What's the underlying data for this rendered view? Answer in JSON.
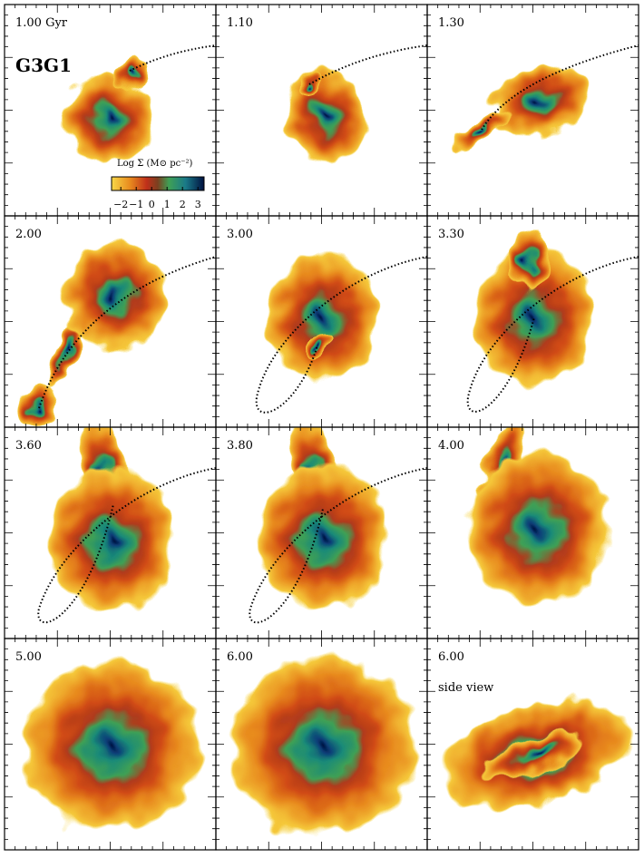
{
  "panels": [
    {
      "label": "1.00 Gyr",
      "model": "G3G1"
    },
    {
      "label": "1.10"
    },
    {
      "label": "1.30"
    },
    {
      "label": "2.00"
    },
    {
      "label": "3.00"
    },
    {
      "label": "3.30"
    },
    {
      "label": "3.60"
    },
    {
      "label": "3.80"
    },
    {
      "label": "4.00"
    },
    {
      "label": "5.00"
    },
    {
      "label": "6.00"
    },
    {
      "label": "6.00",
      "note": "side view"
    }
  ],
  "colorbar": {
    "label": "Log Σ (M⊙ pc⁻²)",
    "lim": [
      -2.6,
      3.4
    ],
    "ticks": [
      {
        "value": -2,
        "label": "−2"
      },
      {
        "value": -1,
        "label": "−1"
      },
      0,
      1,
      2,
      3
    ]
  }
}
